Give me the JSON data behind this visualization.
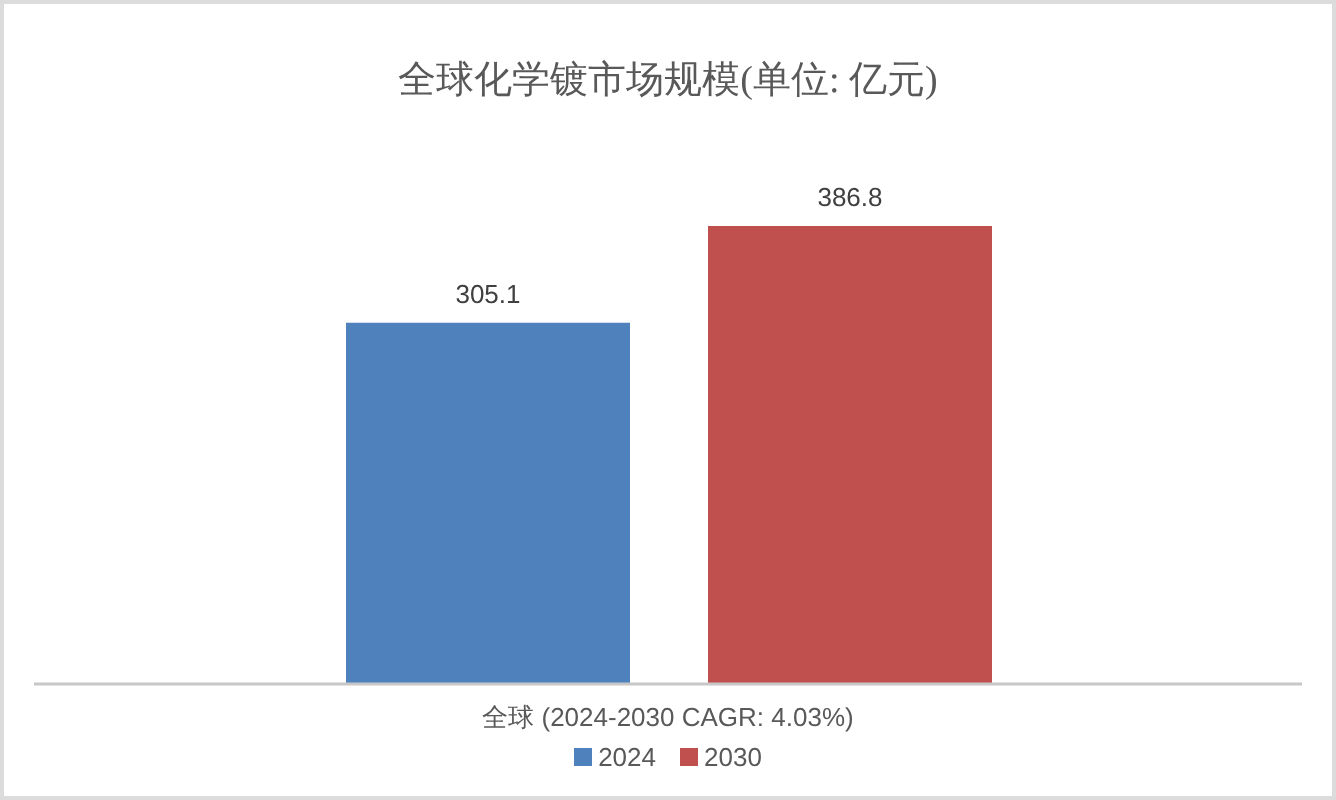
{
  "chart_data": {
    "type": "bar",
    "title": "全球化学镀市场规模(单位: 亿元)",
    "xlabel": "全球 (2024-2030 CAGR: 4.03%)",
    "categories": [
      null,
      null
    ],
    "tick_labels": false,
    "stacked": true,
    "series": [
      {
        "name": "2024",
        "color": "#4f81bd",
        "values": [
          305.1,
          null
        ]
      },
      {
        "name": "2030",
        "color": "#c0504d",
        "values": [
          null,
          386.8
        ]
      }
    ],
    "data_labels": true,
    "legend": "bottom"
  }
}
